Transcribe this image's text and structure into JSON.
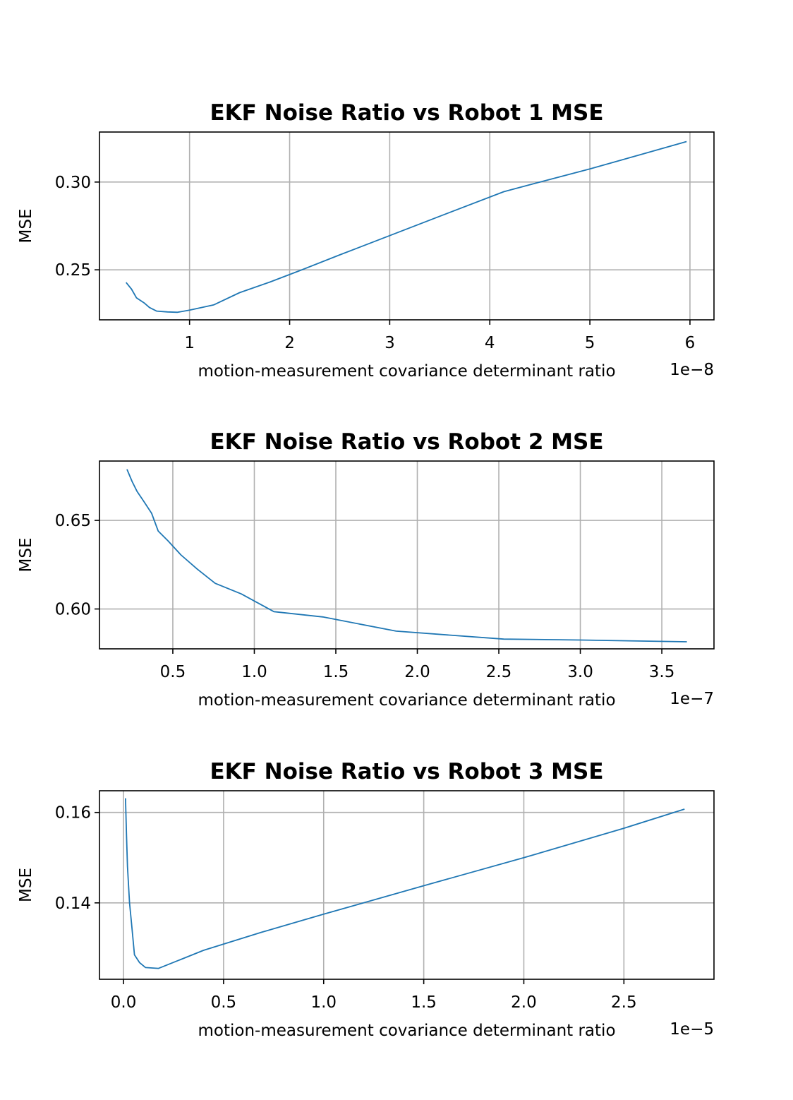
{
  "chart_data": [
    {
      "type": "line",
      "title": "EKF Noise Ratio vs Robot 1 MSE",
      "xlabel": "motion-measurement covariance determinant ratio",
      "ylabel": "MSE",
      "x_offset_label": "1e−8",
      "x_scale": 1e-08,
      "xlim": [
        0.1,
        6.24
      ],
      "ylim": [
        0.2215,
        0.3285
      ],
      "xticks": [
        1,
        2,
        3,
        4,
        5,
        6
      ],
      "xtick_labels": [
        "1",
        "2",
        "3",
        "4",
        "5",
        "6"
      ],
      "yticks": [
        0.25,
        0.3
      ],
      "ytick_labels": [
        "0.25",
        "0.30"
      ],
      "grid": true,
      "series": [
        {
          "color": "#1f77b4",
          "x": [
            0.37,
            0.42,
            0.47,
            0.55,
            0.6,
            0.67,
            0.78,
            0.88,
            1.0,
            1.24,
            1.5,
            1.8,
            2.1,
            2.5,
            3.0,
            3.5,
            4.14,
            4.5,
            5.0,
            5.5,
            5.96
          ],
          "y": [
            0.2425,
            0.239,
            0.234,
            0.231,
            0.2285,
            0.2265,
            0.226,
            0.2258,
            0.227,
            0.23,
            0.237,
            0.243,
            0.2495,
            0.2585,
            0.2695,
            0.2805,
            0.2945,
            0.3,
            0.3075,
            0.3155,
            0.323
          ]
        }
      ]
    },
    {
      "type": "line",
      "title": "EKF Noise Ratio vs Robot 2 MSE",
      "xlabel": "motion-measurement covariance determinant ratio",
      "ylabel": "MSE",
      "x_offset_label": "1e−7",
      "x_scale": 1e-07,
      "xlim": [
        0.05,
        3.82
      ],
      "ylim": [
        0.5775,
        0.6835
      ],
      "xticks": [
        0.5,
        1.0,
        1.5,
        2.0,
        2.5,
        3.0,
        3.5
      ],
      "xtick_labels": [
        "0.5",
        "1.0",
        "1.5",
        "2.0",
        "2.5",
        "3.0",
        "3.5"
      ],
      "yticks": [
        0.6,
        0.65
      ],
      "ytick_labels": [
        "0.60",
        "0.65"
      ],
      "grid": true,
      "series": [
        {
          "color": "#1f77b4",
          "x": [
            0.22,
            0.25,
            0.28,
            0.32,
            0.37,
            0.41,
            0.47,
            0.55,
            0.65,
            0.76,
            0.92,
            1.12,
            1.42,
            1.87,
            2.53,
            3.0,
            3.65
          ],
          "y": [
            0.6785,
            0.672,
            0.6665,
            0.661,
            0.654,
            0.644,
            0.6385,
            0.6305,
            0.6225,
            0.6145,
            0.6085,
            0.5985,
            0.5955,
            0.5875,
            0.583,
            0.5825,
            0.5815
          ]
        }
      ]
    },
    {
      "type": "line",
      "title": "EKF Noise Ratio vs Robot 3 MSE",
      "xlabel": "motion-measurement covariance determinant ratio",
      "ylabel": "MSE",
      "x_offset_label": "1e−5",
      "x_scale": 1e-05,
      "xlim": [
        -0.12,
        2.95
      ],
      "ylim": [
        0.1231,
        0.1648
      ],
      "xticks": [
        0.0,
        0.5,
        1.0,
        1.5,
        2.0,
        2.5
      ],
      "xtick_labels": [
        "0.0",
        "0.5",
        "1.0",
        "1.5",
        "2.0",
        "2.5"
      ],
      "yticks": [
        0.14,
        0.16
      ],
      "ytick_labels": [
        "0.14",
        "0.16"
      ],
      "grid": true,
      "series": [
        {
          "color": "#1f77b4",
          "x": [
            0.01,
            0.015,
            0.02,
            0.03,
            0.04,
            0.055,
            0.08,
            0.11,
            0.175,
            0.4,
            0.69,
            1.0,
            1.5,
            2.0,
            2.5,
            2.8
          ],
          "y": [
            0.163,
            0.155,
            0.148,
            0.14,
            0.1355,
            0.1285,
            0.1268,
            0.1257,
            0.1255,
            0.1295,
            0.1335,
            0.1375,
            0.1438,
            0.15,
            0.1565,
            0.1607
          ]
        }
      ]
    }
  ]
}
